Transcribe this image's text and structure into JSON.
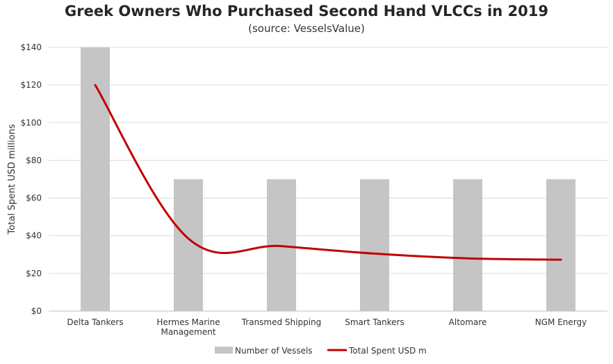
{
  "chart_data": {
    "type": "bar",
    "title": "Greek Owners Who Purchased Second Hand VLCCs in 2019",
    "subtitle": "(source: VesselsValue)",
    "ylabel": "Total Spent USD millions",
    "xlabel": "",
    "ylim": [
      0,
      140
    ],
    "yticks": [
      "$0",
      "$20",
      "$40",
      "$60",
      "$80",
      "$100",
      "$120",
      "$140"
    ],
    "yticks_values": [
      0,
      20,
      40,
      60,
      80,
      100,
      120,
      140
    ],
    "categories": [
      [
        "Delta Tankers"
      ],
      [
        "Hermes Marine",
        "Management"
      ],
      [
        "Transmed Shipping"
      ],
      [
        "Smart Tankers"
      ],
      [
        "Altomare"
      ],
      [
        "NGM Energy"
      ]
    ],
    "grid": true,
    "legend_position": "bottom",
    "series": [
      {
        "name": "Number of Vessels",
        "type": "bar",
        "color": "#c5c5c5",
        "values": [
          140,
          70,
          70,
          70,
          70,
          70
        ]
      },
      {
        "name": "Total Spent USD m",
        "type": "line",
        "color": "#c00000",
        "values": [
          120,
          38.5,
          34.5,
          30.5,
          28,
          27.3
        ]
      }
    ]
  }
}
